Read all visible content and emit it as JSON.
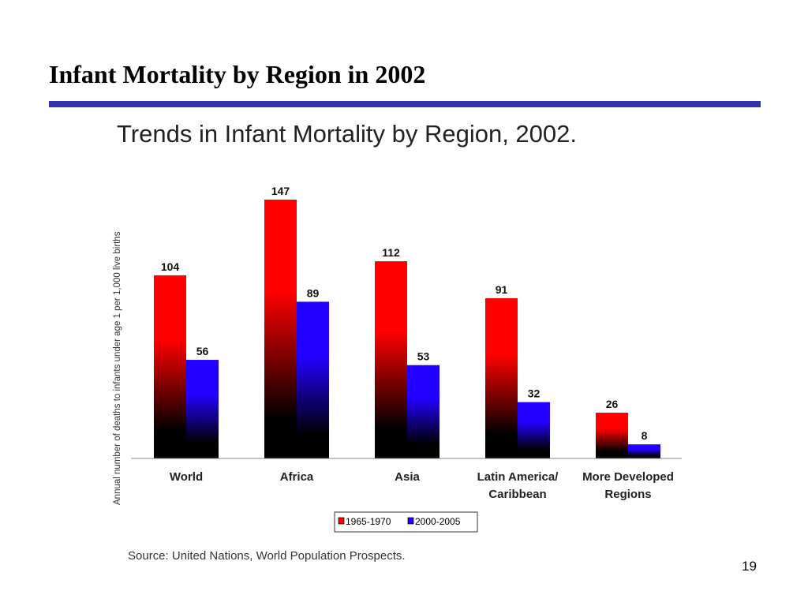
{
  "slide": {
    "title": "Infant Mortality by Region in 2002",
    "page_number": "19",
    "source": "Source: United Nations, World Population Prospects."
  },
  "colors": {
    "title_rule": "#3333aa",
    "series_1965": "#ff0000",
    "series_2000": "#2200ff"
  },
  "chart_data": {
    "type": "bar",
    "title": "Trends in Infant Mortality by Region, 2002.",
    "ylabel": "Annual number of deaths to infants under age 1 per 1,000 live births",
    "xlabel": "",
    "ylim": [
      0,
      147
    ],
    "grid": false,
    "legend_position": "bottom",
    "categories": [
      [
        "World"
      ],
      [
        "Africa"
      ],
      [
        "Asia"
      ],
      [
        "Latin America/",
        "Caribbean"
      ],
      [
        "More Developed",
        "Regions"
      ]
    ],
    "series": [
      {
        "name": "1965-1970",
        "color": "#ff0000",
        "values": [
          104,
          147,
          112,
          91,
          26
        ]
      },
      {
        "name": "2000-2005",
        "color": "#2200ff",
        "values": [
          56,
          89,
          53,
          32,
          8
        ]
      }
    ]
  }
}
